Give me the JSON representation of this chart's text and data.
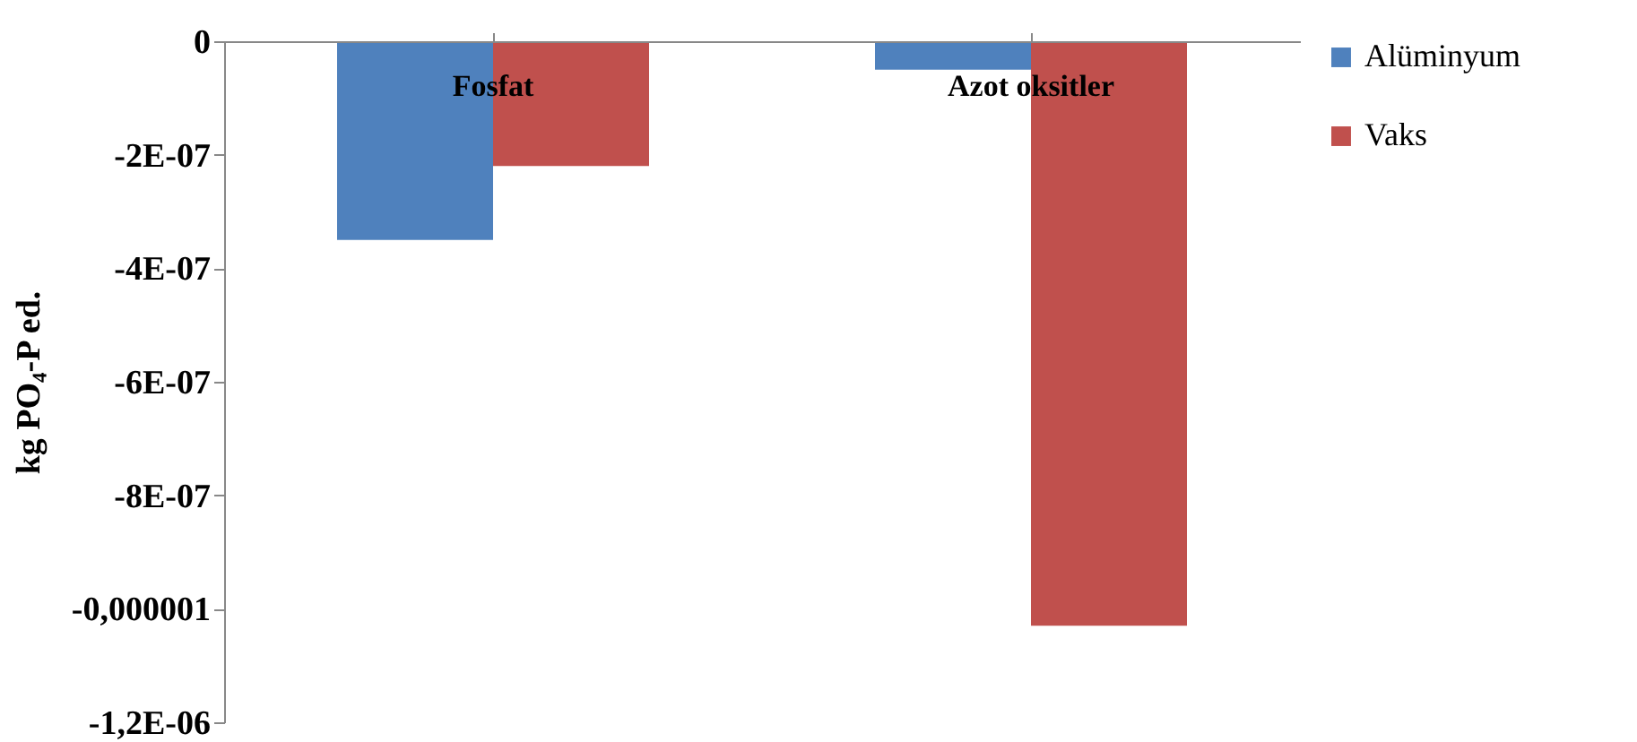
{
  "chart_data": {
    "type": "bar",
    "ylabel": "kg PO₄-P ed.",
    "categories": [
      "Fosfat",
      "Azot oksitler"
    ],
    "series": [
      {
        "name": "Alüminyum",
        "color": "#4f81bd",
        "values": [
          -3.5e-07,
          -5e-08
        ]
      },
      {
        "name": "Vaks",
        "color": "#c0504d",
        "values": [
          -2.2e-07,
          -1.03e-06
        ]
      }
    ],
    "ylim": [
      -1.2e-06,
      0
    ],
    "yticks": [
      {
        "value": 0,
        "label": "0"
      },
      {
        "value": -2e-07,
        "label": "-2E-07"
      },
      {
        "value": -4e-07,
        "label": "-4E-07"
      },
      {
        "value": -6e-07,
        "label": "-6E-07"
      },
      {
        "value": -8e-07,
        "label": "-8E-07"
      },
      {
        "value": -1e-06,
        "label": "-0,000001"
      },
      {
        "value": -1.2e-06,
        "label": "-1,2E-06"
      }
    ],
    "grid": false,
    "legend": "right"
  }
}
